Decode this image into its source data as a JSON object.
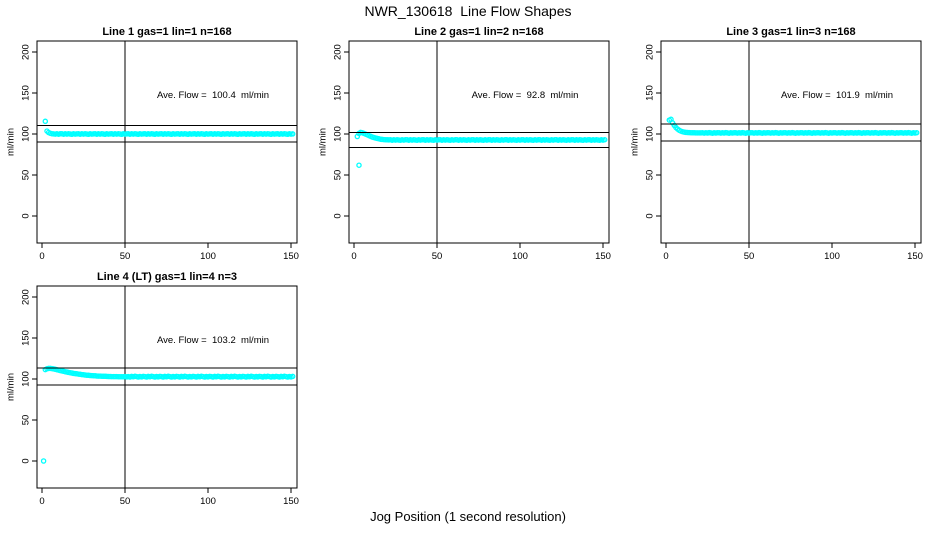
{
  "page": {
    "title": "NWR_130618  Line Flow Shapes",
    "xlabel": "Jog Position (1 second resolution)",
    "background": "#FFFFFF"
  },
  "colors": {
    "points": "#00FFFF",
    "axis": "#000000",
    "text": "#000000"
  },
  "chart_data": [
    {
      "type": "scatter",
      "title": "Line 1 gas=1 lin=1 n=168",
      "ave_flow_text": "Ave. Flow =  100.4  ml/min",
      "ave_flow_ml_min": 100.4,
      "n": 168,
      "ylabel": "ml/min",
      "upper_ref_line": 110.4,
      "lower_ref_line": 90.4,
      "vline_x": 50,
      "x_ticks": [
        0,
        50,
        100,
        150
      ],
      "y_ticks": [
        0,
        50,
        100,
        150,
        200
      ],
      "xlim": [
        -3,
        153.6
      ],
      "ylim": [
        -33,
        213.5
      ],
      "marker": "open-circle",
      "series": {
        "name": "flow",
        "start_x": 2,
        "x_step": 1,
        "y": [
          115.5,
          103.6,
          101.8,
          100.9,
          100.4,
          100.1,
          99.9,
          100.2,
          99.8,
          100.3,
          100.3,
          99.8,
          100.2,
          99.9,
          100.4,
          100.0,
          99.7,
          100.2,
          99.9,
          100.1,
          100.3,
          99.8,
          100.2,
          99.9,
          100.4,
          100.0,
          99.7,
          100.2,
          99.9,
          100.1,
          100.3,
          99.8,
          100.2,
          99.9,
          100.4,
          100.0,
          99.7,
          100.2,
          99.9,
          100.1,
          100.3,
          99.8,
          100.2,
          99.9,
          100.4,
          100.0,
          99.7,
          100.2,
          99.9,
          100.1,
          100.3,
          99.8,
          100.2,
          99.9,
          100.4,
          100.0,
          99.7,
          100.2,
          99.9,
          100.1,
          100.3,
          99.8,
          100.2,
          99.9,
          100.4,
          100.0,
          99.7,
          100.2,
          99.9,
          100.1,
          100.3,
          99.8,
          100.2,
          99.9,
          100.4,
          100.0,
          99.7,
          100.2,
          99.9,
          100.1,
          100.3,
          99.8,
          100.2,
          99.9,
          100.4,
          100.0,
          99.7,
          100.2,
          99.9,
          100.1,
          100.3,
          99.8,
          100.2,
          99.9,
          100.4,
          100.0,
          99.7,
          100.2,
          99.9,
          100.1,
          100.3,
          99.8,
          100.2,
          99.9,
          100.4,
          100.0,
          99.7,
          100.2,
          99.9,
          100.1,
          100.3,
          99.8,
          100.2,
          99.9,
          100.4,
          100.0,
          99.7,
          100.2,
          99.9,
          100.1,
          100.3,
          99.8,
          100.2,
          99.9,
          100.4,
          100.0,
          99.7,
          100.2,
          99.9,
          100.1,
          100.3,
          99.8,
          100.2,
          99.9,
          100.4,
          100.0,
          99.7,
          100.2,
          99.9,
          100.1,
          100.3,
          99.8,
          100.2,
          99.9,
          100.4,
          100.0,
          99.7,
          100.2,
          99.9,
          100.1
        ]
      },
      "outliers": []
    },
    {
      "type": "scatter",
      "title": "Line 2 gas=1 lin=2 n=168",
      "ave_flow_text": "Ave. Flow =  92.8  ml/min",
      "ave_flow_ml_min": 92.8,
      "n": 168,
      "ylabel": "ml/min",
      "upper_ref_line": 102.1,
      "lower_ref_line": 83.5,
      "vline_x": 50,
      "x_ticks": [
        0,
        50,
        100,
        150
      ],
      "y_ticks": [
        0,
        50,
        100,
        150,
        200
      ],
      "xlim": [
        -3,
        153.6
      ],
      "ylim": [
        -33,
        213.5
      ],
      "marker": "open-circle",
      "series": {
        "name": "flow",
        "start_x": 2,
        "x_step": 1,
        "y": [
          97.0,
          100.8,
          102.0,
          101.6,
          100.8,
          99.9,
          99.0,
          98.1,
          97.2,
          96.4,
          95.7,
          95.1,
          94.6,
          94.1,
          93.7,
          93.4,
          93.2,
          93.0,
          92.9,
          92.8,
          92.9,
          92.5,
          93.0,
          92.6,
          93.1,
          92.7,
          92.4,
          92.9,
          92.6,
          93.0,
          92.9,
          92.5,
          93.0,
          92.6,
          93.1,
          92.7,
          92.4,
          92.9,
          92.6,
          93.0,
          92.9,
          92.5,
          93.0,
          92.6,
          93.1,
          92.7,
          92.4,
          92.9,
          92.6,
          93.0,
          92.9,
          92.5,
          93.0,
          92.6,
          93.1,
          92.7,
          92.4,
          92.9,
          92.6,
          93.0,
          92.9,
          92.5,
          93.0,
          92.6,
          93.1,
          92.7,
          92.4,
          92.9,
          92.6,
          93.0,
          92.9,
          92.5,
          93.0,
          92.6,
          93.1,
          92.7,
          92.4,
          92.9,
          92.6,
          93.0,
          92.9,
          92.5,
          93.0,
          92.6,
          93.1,
          92.7,
          92.4,
          92.9,
          92.6,
          93.0,
          92.9,
          92.5,
          93.0,
          92.6,
          93.1,
          92.7,
          92.4,
          92.9,
          92.6,
          93.0,
          92.9,
          92.5,
          93.0,
          92.6,
          93.1,
          92.7,
          92.4,
          92.9,
          92.6,
          93.0,
          92.9,
          92.5,
          93.0,
          92.6,
          93.1,
          92.7,
          92.4,
          92.9,
          92.6,
          93.0,
          92.9,
          92.5,
          93.0,
          92.6,
          93.1,
          92.7,
          92.4,
          92.9,
          92.6,
          93.0,
          92.9,
          92.5,
          93.0,
          92.6,
          93.1,
          92.7,
          92.4,
          92.9,
          92.6,
          93.0,
          92.9,
          92.5,
          93.0,
          92.6,
          93.1,
          92.7,
          92.4,
          92.9,
          92.6,
          93.0
        ]
      },
      "outliers": [
        [
          3,
          62
        ]
      ]
    },
    {
      "type": "scatter",
      "title": "Line 3 gas=1 lin=3 n=168",
      "ave_flow_text": "Ave. Flow =  101.9  ml/min",
      "ave_flow_ml_min": 101.9,
      "n": 168,
      "ylabel": "ml/min",
      "upper_ref_line": 112.1,
      "lower_ref_line": 91.7,
      "vline_x": 50,
      "x_ticks": [
        0,
        50,
        100,
        150
      ],
      "y_ticks": [
        0,
        50,
        100,
        150,
        200
      ],
      "xlim": [
        -3,
        153.6
      ],
      "ylim": [
        -33,
        213.5
      ],
      "marker": "open-circle",
      "series": {
        "name": "flow",
        "start_x": 2,
        "x_step": 1,
        "y": [
          117.0,
          118.0,
          113.5,
          110.5,
          108.0,
          106.0,
          104.5,
          103.5,
          102.8,
          102.3,
          102.0,
          101.8,
          101.7,
          101.6,
          101.5,
          101.5,
          101.4,
          101.4,
          101.3,
          101.3,
          101.5,
          101.1,
          101.6,
          101.2,
          101.7,
          101.3,
          101.0,
          101.5,
          101.2,
          101.6,
          101.5,
          101.1,
          101.6,
          101.2,
          101.7,
          101.3,
          101.0,
          101.5,
          101.2,
          101.6,
          101.5,
          101.1,
          101.6,
          101.2,
          101.7,
          101.3,
          101.0,
          101.5,
          101.2,
          101.6,
          101.5,
          101.1,
          101.6,
          101.2,
          101.7,
          101.3,
          101.0,
          101.5,
          101.2,
          101.6,
          101.5,
          101.1,
          101.6,
          101.2,
          101.7,
          101.3,
          101.0,
          101.5,
          101.2,
          101.6,
          101.5,
          101.1,
          101.6,
          101.2,
          101.7,
          101.3,
          101.0,
          101.5,
          101.2,
          101.6,
          101.5,
          101.1,
          101.6,
          101.2,
          101.7,
          101.3,
          101.0,
          101.5,
          101.2,
          101.6,
          101.5,
          101.1,
          101.6,
          101.2,
          101.7,
          101.3,
          101.0,
          101.5,
          101.2,
          101.6,
          101.5,
          101.1,
          101.6,
          101.2,
          101.7,
          101.3,
          101.0,
          101.5,
          101.2,
          101.6,
          101.5,
          101.1,
          101.6,
          101.2,
          101.7,
          101.3,
          101.0,
          101.5,
          101.2,
          101.6,
          101.5,
          101.1,
          101.6,
          101.2,
          101.7,
          101.3,
          101.0,
          101.5,
          101.2,
          101.6,
          101.5,
          101.1,
          101.6,
          101.2,
          101.7,
          101.3,
          101.0,
          101.5,
          101.2,
          101.6,
          101.5,
          101.1,
          101.6,
          101.2,
          101.7,
          101.3,
          101.0,
          101.5,
          101.2,
          101.6
        ]
      },
      "outliers": []
    },
    {
      "type": "scatter",
      "title": "Line 4 (LT) gas=1 lin=4 n=3",
      "ave_flow_text": "Ave. Flow =  103.2  ml/min",
      "ave_flow_ml_min": 103.2,
      "n": 3,
      "ylabel": "ml/min",
      "upper_ref_line": 113.5,
      "lower_ref_line": 92.9,
      "vline_x": 50,
      "x_ticks": [
        0,
        50,
        100,
        150
      ],
      "y_ticks": [
        0,
        50,
        100,
        150,
        200
      ],
      "xlim": [
        -3,
        153.6
      ],
      "ylim": [
        -33,
        213.5
      ],
      "marker": "open-circle",
      "series": {
        "name": "flow",
        "start_x": 2,
        "x_step": 1,
        "y": [
          111.5,
          112.5,
          113.0,
          113.0,
          112.7,
          112.3,
          111.9,
          111.4,
          110.9,
          110.4,
          109.9,
          109.4,
          108.9,
          108.5,
          108.1,
          107.7,
          107.3,
          106.9,
          106.6,
          106.3,
          106.0,
          105.7,
          105.4,
          105.2,
          104.9,
          104.7,
          104.5,
          104.3,
          104.2,
          104.0,
          103.9,
          103.7,
          103.6,
          103.5,
          103.4,
          103.3,
          103.3,
          103.2,
          103.1,
          103.1,
          103.0,
          103.0,
          102.9,
          102.9,
          102.8,
          102.8,
          102.8,
          102.7,
          102.9,
          102.6,
          103.0,
          102.5,
          103.2,
          102.7,
          103.4,
          102.9,
          102.4,
          103.1,
          102.6,
          103.2,
          103.0,
          102.5,
          103.2,
          102.7,
          103.4,
          102.9,
          102.4,
          103.1,
          102.6,
          103.2,
          103.0,
          102.5,
          103.2,
          102.7,
          103.4,
          102.9,
          102.4,
          103.1,
          102.6,
          103.2,
          103.0,
          102.5,
          103.2,
          102.7,
          103.4,
          102.9,
          102.4,
          103.1,
          102.6,
          103.2,
          103.0,
          102.5,
          103.2,
          102.7,
          103.4,
          102.9,
          102.4,
          103.1,
          102.6,
          103.2,
          103.0,
          102.5,
          103.2,
          102.7,
          103.4,
          102.9,
          102.4,
          103.1,
          102.6,
          103.2,
          103.0,
          102.5,
          103.2,
          102.7,
          103.4,
          102.9,
          102.4,
          103.1,
          102.6,
          103.2,
          103.0,
          102.5,
          103.2,
          102.7,
          103.4,
          102.9,
          102.4,
          103.1,
          102.6,
          103.2,
          103.0,
          102.5,
          103.2,
          102.7,
          103.4,
          102.9,
          102.4,
          103.1,
          102.6,
          103.2,
          103.0,
          102.5,
          103.2,
          102.7,
          103.4,
          102.9,
          102.4,
          103.1,
          102.6,
          103.2
        ]
      },
      "outliers": [
        [
          1,
          0
        ]
      ]
    }
  ]
}
